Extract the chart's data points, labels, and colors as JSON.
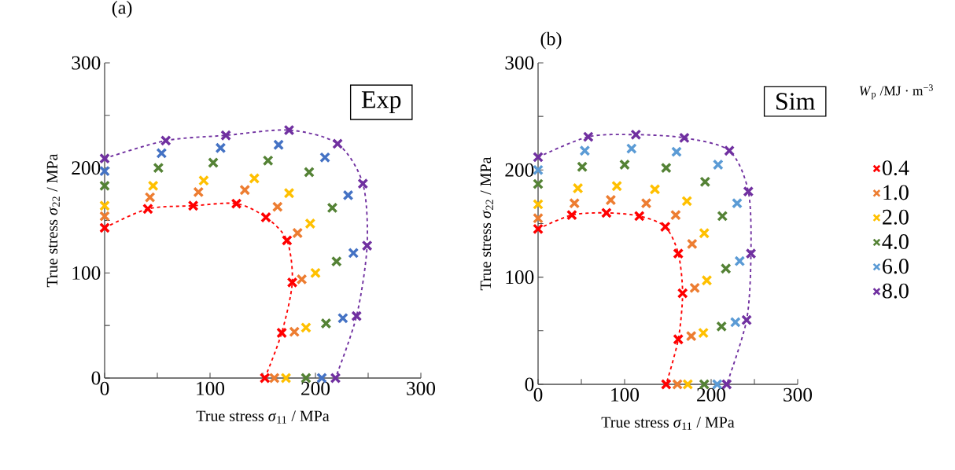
{
  "chart_data": [
    {
      "type": "scatter",
      "title": "(a)",
      "xlabel": "True stress *σ*$_{11}$ / MPa",
      "ylabel": "True stress *σ*$_{22}$ / MPa",
      "xlim": [
        0,
        300
      ],
      "ylim": [
        0,
        300
      ],
      "xticks": [
        0,
        {
          "value": 50,
          "label": null
        },
        100,
        {
          "value": 150,
          "label": null
        },
        200,
        {
          "value": 250,
          "label": null
        },
        300
      ],
      "yticks": [
        0,
        {
          "value": 50,
          "label": null
        },
        100,
        {
          "value": 150,
          "label": null
        },
        200,
        {
          "value": 250,
          "label": null
        },
        300
      ],
      "marker": "cross",
      "annotations": [
        "Exp"
      ],
      "series": [
        {
          "type": "line",
          "line_style": "dashed",
          "color": "#ff0000",
          "x": [
            0,
            41,
            84,
            125,
            153,
            173,
            178,
            168,
            152
          ],
          "values": [
            143,
            161,
            164,
            166,
            153,
            131,
            91,
            43,
            0
          ]
        },
        {
          "color": "#ed7d31",
          "x": [
            0,
            43,
            89,
            133,
            164,
            183,
            187,
            180,
            161
          ],
          "values": [
            154,
            172,
            177,
            179,
            163,
            138,
            94,
            44,
            0
          ]
        },
        {
          "color": "#ffc000",
          "x": [
            0,
            46,
            94,
            142,
            175,
            195,
            200,
            191,
            172
          ],
          "values": [
            164,
            183,
            188,
            190,
            176,
            147,
            100,
            48,
            0
          ]
        },
        {
          "color": "#548235",
          "x": [
            0,
            51,
            103,
            155,
            194,
            216,
            220,
            210,
            191
          ],
          "values": [
            183,
            200,
            205,
            207,
            196,
            162,
            111,
            52,
            0
          ]
        },
        {
          "color": "#4472c4",
          "x": [
            0,
            54,
            110,
            165,
            209,
            231,
            236,
            226,
            206
          ],
          "values": [
            197,
            214,
            219,
            222,
            210,
            174,
            119,
            57,
            0
          ]
        },
        {
          "type": "line",
          "line_style": "dashed",
          "color": "#7030a0",
          "x": [
            0,
            58,
            115,
            175,
            221,
            245,
            249,
            239,
            219
          ],
          "values": [
            209,
            226,
            231,
            236,
            223,
            185,
            126,
            59,
            0
          ]
        }
      ]
    },
    {
      "type": "scatter",
      "title": "(b)",
      "xlabel": "True stress *σ*$_{11}$ / MPa",
      "ylabel": "True stress *σ*$_{22}$ / MPa",
      "xlim": [
        0,
        300
      ],
      "ylim": [
        0,
        300
      ],
      "xticks": [
        0,
        {
          "value": 50,
          "label": null
        },
        100,
        {
          "value": 150,
          "label": null
        },
        200,
        {
          "value": 250,
          "label": null
        },
        300
      ],
      "yticks": [
        0,
        {
          "value": 50,
          "label": null
        },
        100,
        {
          "value": 150,
          "label": null
        },
        200,
        {
          "value": 250,
          "label": null
        },
        300
      ],
      "marker": "cross",
      "annotations": [
        "Sim"
      ],
      "legend": "right",
      "legend_title": "*W*$_{p}$ /MJ · m$^{−3}$",
      "series": [
        {
          "name": "0.4",
          "type": "line",
          "line_style": "dashed",
          "color": "#ff0000",
          "x": [
            0,
            39,
            79,
            117,
            147,
            162,
            167,
            162,
            148
          ],
          "values": [
            145,
            158,
            160,
            157,
            147,
            122,
            85,
            42,
            0
          ]
        },
        {
          "name": "1.0",
          "color": "#ed7d31",
          "x": [
            0,
            42,
            84,
            125,
            159,
            178,
            181,
            177,
            161
          ],
          "values": [
            155,
            169,
            172,
            169,
            158,
            131,
            90,
            45,
            0
          ]
        },
        {
          "name": "2.0",
          "color": "#ffc000",
          "x": [
            0,
            46,
            91,
            135,
            172,
            192,
            195,
            191,
            173
          ],
          "values": [
            168,
            183,
            185,
            182,
            171,
            141,
            97,
            48,
            0
          ]
        },
        {
          "name": "4.0",
          "color": "#548235",
          "x": [
            0,
            51,
            100,
            148,
            193,
            213,
            217,
            212,
            192
          ],
          "values": [
            187,
            203,
            205,
            202,
            189,
            157,
            108,
            54,
            0
          ]
        },
        {
          "name": "6.0",
          "color": "#5b9bd5",
          "x": [
            0,
            54,
            108,
            160,
            208,
            230,
            233,
            228,
            207
          ],
          "values": [
            200,
            218,
            220,
            217,
            205,
            169,
            115,
            58,
            0
          ]
        },
        {
          "name": "8.0",
          "type": "line",
          "line_style": "dashed",
          "color": "#7030a0",
          "x": [
            0,
            58,
            113,
            169,
            221,
            243,
            246,
            241,
            218
          ],
          "values": [
            212,
            231,
            233,
            230,
            218,
            180,
            122,
            60,
            0
          ]
        }
      ]
    }
  ]
}
